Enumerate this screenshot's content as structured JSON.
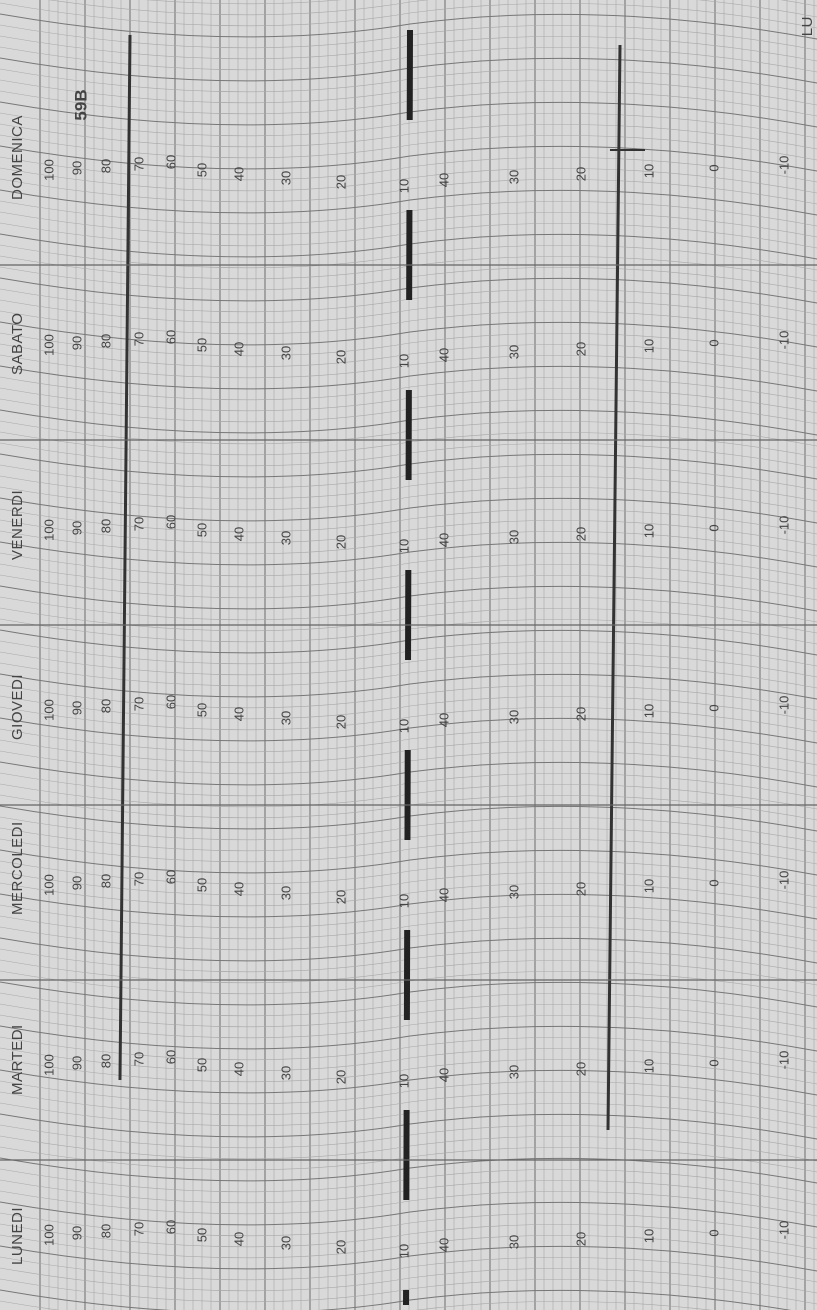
{
  "corner_label": "LU",
  "chart_code": "59B",
  "days": [
    "DOMENICA",
    "SABATO",
    "VENERDI",
    "GIOVEDI",
    "MERCOLEDI",
    "MARTEDI",
    "LUNEDI"
  ],
  "humidity_scale": [
    100,
    90,
    80,
    70,
    60,
    50,
    40,
    30,
    20,
    10
  ],
  "temperature_scale": [
    40,
    30,
    20,
    10,
    0,
    -10
  ]
}
